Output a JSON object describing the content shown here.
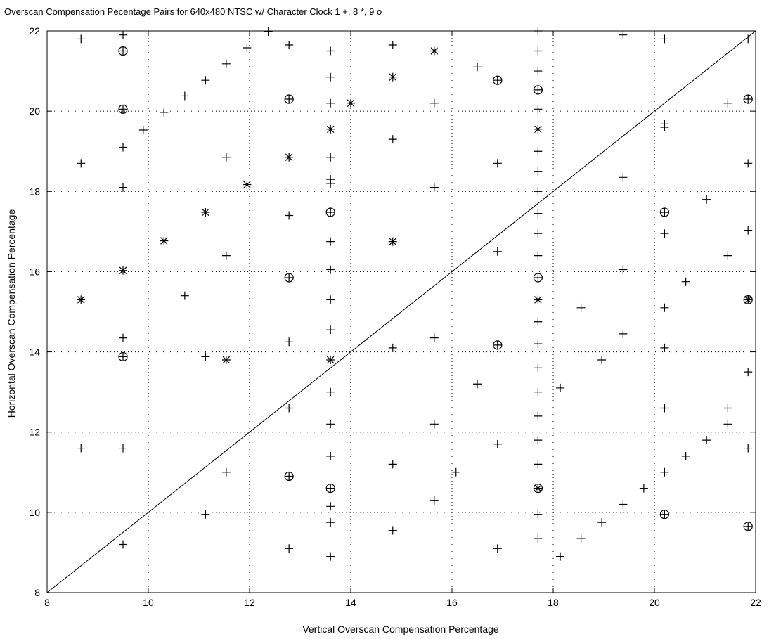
{
  "chart_data": {
    "type": "scatter",
    "title": "Overscan Compensation Pecentage Pairs for 640x480 NTSC w/ Character Clock 1 +, 8 *, 9 o",
    "xlabel": "Vertical Overscan Compensation Percentage",
    "ylabel": "Horizontal Overscan Compensation Percentage",
    "xlim": [
      8,
      22
    ],
    "ylim": [
      8,
      22
    ],
    "xticks": [
      "8",
      "10",
      "12",
      "14",
      "16",
      "18",
      "20",
      "22"
    ],
    "yticks": [
      "8",
      "10",
      "12",
      "14",
      "16",
      "18",
      "20",
      "22"
    ],
    "grid": true,
    "legend": "none",
    "reference_line": {
      "from": [
        8,
        8
      ],
      "to": [
        22,
        22
      ]
    },
    "series": [
      {
        "marker": "+",
        "points": [
          [
            8.67,
            21.8
          ],
          [
            9.5,
            21.9
          ],
          [
            12.78,
            21.65
          ],
          [
            13.6,
            21.5
          ],
          [
            14.83,
            21.65
          ],
          [
            17.7,
            22.0
          ],
          [
            19.38,
            21.9
          ],
          [
            20.2,
            21.8
          ],
          [
            21.85,
            21.8
          ],
          [
            12.37,
            21.98
          ],
          [
            11.95,
            21.58
          ],
          [
            11.54,
            21.18
          ],
          [
            11.13,
            20.77
          ],
          [
            10.72,
            20.38
          ],
          [
            10.31,
            19.97
          ],
          [
            9.9,
            19.53
          ],
          [
            13.6,
            20.85
          ],
          [
            13.6,
            20.2
          ],
          [
            15.65,
            20.2
          ],
          [
            16.5,
            21.1
          ],
          [
            17.7,
            21.5
          ],
          [
            17.7,
            21.0
          ],
          [
            17.7,
            20.05
          ],
          [
            17.7,
            19.0
          ],
          [
            17.7,
            18.5
          ],
          [
            17.7,
            18.0
          ],
          [
            17.7,
            17.45
          ],
          [
            17.7,
            16.95
          ],
          [
            17.7,
            16.4
          ],
          [
            17.7,
            14.75
          ],
          [
            17.7,
            14.2
          ],
          [
            17.7,
            13.6
          ],
          [
            17.7,
            13.0
          ],
          [
            17.7,
            12.4
          ],
          [
            17.7,
            11.8
          ],
          [
            17.7,
            11.2
          ],
          [
            17.7,
            9.95
          ],
          [
            17.7,
            9.35
          ],
          [
            21.45,
            20.2
          ],
          [
            20.2,
            19.68
          ],
          [
            20.2,
            19.6
          ],
          [
            21.85,
            18.7
          ],
          [
            19.38,
            18.35
          ],
          [
            21.03,
            17.8
          ],
          [
            21.85,
            17.03
          ],
          [
            20.2,
            16.95
          ],
          [
            21.45,
            16.4
          ],
          [
            19.38,
            16.05
          ],
          [
            20.62,
            15.75
          ],
          [
            18.55,
            15.1
          ],
          [
            20.2,
            15.1
          ],
          [
            19.38,
            14.45
          ],
          [
            20.2,
            14.1
          ],
          [
            18.96,
            13.8
          ],
          [
            21.85,
            13.5
          ],
          [
            18.14,
            13.1
          ],
          [
            20.2,
            12.6
          ],
          [
            21.45,
            12.6
          ],
          [
            21.45,
            12.2
          ],
          [
            21.03,
            11.8
          ],
          [
            21.85,
            11.6
          ],
          [
            20.62,
            11.4
          ],
          [
            20.2,
            11.0
          ],
          [
            19.79,
            10.6
          ],
          [
            19.38,
            10.2
          ],
          [
            18.96,
            9.75
          ],
          [
            18.55,
            9.35
          ],
          [
            18.14,
            8.9
          ],
          [
            9.5,
            19.1
          ],
          [
            8.67,
            18.7
          ],
          [
            9.5,
            18.1
          ],
          [
            11.54,
            18.85
          ],
          [
            12.78,
            17.4
          ],
          [
            11.54,
            16.4
          ],
          [
            10.72,
            15.4
          ],
          [
            13.6,
            18.85
          ],
          [
            13.6,
            18.3
          ],
          [
            13.6,
            18.2
          ],
          [
            14.83,
            19.3
          ],
          [
            16.9,
            18.7
          ],
          [
            15.65,
            18.1
          ],
          [
            13.6,
            16.75
          ],
          [
            13.6,
            16.05
          ],
          [
            13.6,
            15.3
          ],
          [
            13.6,
            14.55
          ],
          [
            13.6,
            13.0
          ],
          [
            13.6,
            12.2
          ],
          [
            13.6,
            11.4
          ],
          [
            13.6,
            10.15
          ],
          [
            13.6,
            9.75
          ],
          [
            13.6,
            8.9
          ],
          [
            16.9,
            16.5
          ],
          [
            15.65,
            14.35
          ],
          [
            14.83,
            14.1
          ],
          [
            12.78,
            14.25
          ],
          [
            16.5,
            13.2
          ],
          [
            12.78,
            12.6
          ],
          [
            15.65,
            12.2
          ],
          [
            16.9,
            11.7
          ],
          [
            14.83,
            11.2
          ],
          [
            16.08,
            11.0
          ],
          [
            9.5,
            14.35
          ],
          [
            11.13,
            13.88
          ],
          [
            8.67,
            11.6
          ],
          [
            9.5,
            11.6
          ],
          [
            11.54,
            11.0
          ],
          [
            11.13,
            9.95
          ],
          [
            9.5,
            9.2
          ],
          [
            15.65,
            10.3
          ],
          [
            14.83,
            9.55
          ],
          [
            12.78,
            9.1
          ],
          [
            16.9,
            9.1
          ]
        ]
      },
      {
        "marker": "*",
        "points": [
          [
            15.65,
            21.5
          ],
          [
            14.83,
            20.85
          ],
          [
            14.0,
            20.2
          ],
          [
            13.6,
            19.55
          ],
          [
            12.78,
            18.85
          ],
          [
            11.95,
            18.17
          ],
          [
            11.13,
            17.48
          ],
          [
            10.31,
            16.77
          ],
          [
            9.5,
            16.03
          ],
          [
            8.67,
            15.3
          ],
          [
            17.7,
            19.55
          ],
          [
            14.83,
            16.75
          ],
          [
            17.7,
            15.3
          ],
          [
            21.85,
            15.3
          ],
          [
            13.6,
            13.8
          ],
          [
            11.54,
            13.8
          ],
          [
            17.7,
            10.6
          ]
        ]
      },
      {
        "marker": "o",
        "points": [
          [
            9.5,
            21.5
          ],
          [
            9.5,
            20.05
          ],
          [
            12.78,
            20.3
          ],
          [
            16.9,
            20.77
          ],
          [
            17.7,
            20.53
          ],
          [
            21.85,
            20.3
          ],
          [
            13.6,
            17.48
          ],
          [
            20.2,
            17.48
          ],
          [
            12.78,
            15.85
          ],
          [
            17.7,
            15.85
          ],
          [
            21.85,
            15.3
          ],
          [
            9.5,
            13.88
          ],
          [
            16.9,
            14.17
          ],
          [
            12.78,
            10.9
          ],
          [
            13.6,
            10.6
          ],
          [
            17.7,
            10.6
          ],
          [
            20.2,
            9.95
          ],
          [
            21.85,
            9.65
          ]
        ]
      }
    ]
  }
}
